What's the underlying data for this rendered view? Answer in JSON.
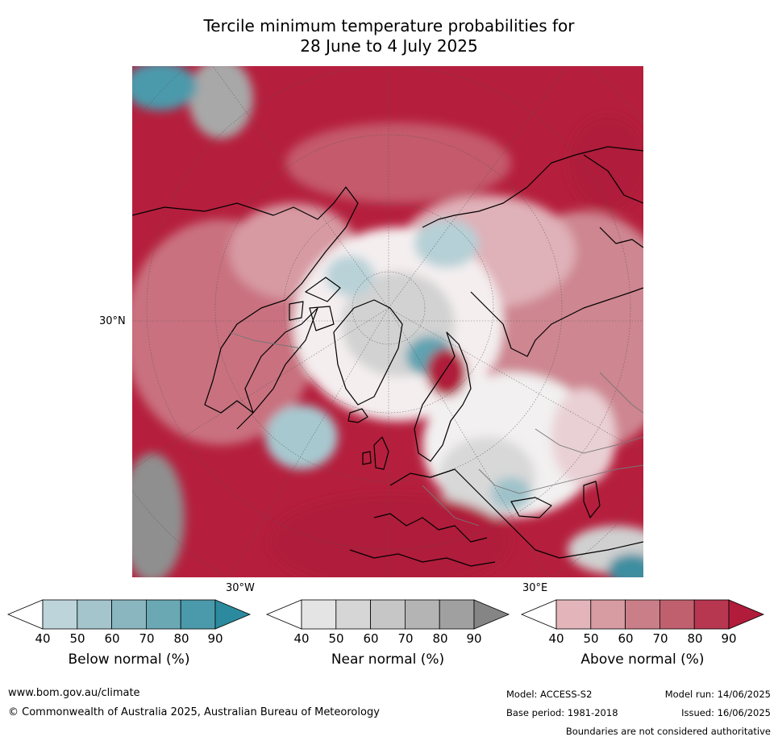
{
  "title": {
    "line1": "Tercile minimum temperature probabilities for",
    "line2": "28 June to 4 July 2025"
  },
  "map": {
    "lat_label": "30°N",
    "lon_label_left": "30°W",
    "lon_label_right": "30°E"
  },
  "colorbars": [
    {
      "title": "Below normal (%)",
      "ticks": [
        "40",
        "50",
        "60",
        "70",
        "80",
        "90"
      ],
      "colors": [
        "#ffffff",
        "#bcd4da",
        "#a4c5cc",
        "#8ab6c0",
        "#6aa8b4",
        "#4b9aab",
        "#2c8a9e"
      ]
    },
    {
      "title": "Near normal (%)",
      "ticks": [
        "40",
        "50",
        "60",
        "70",
        "80",
        "90"
      ],
      "colors": [
        "#ffffff",
        "#e4e4e4",
        "#d6d6d6",
        "#c6c6c6",
        "#b4b4b4",
        "#a0a0a0",
        "#858585"
      ]
    },
    {
      "title": "Above normal (%)",
      "ticks": [
        "40",
        "50",
        "60",
        "70",
        "80",
        "90"
      ],
      "colors": [
        "#ffffff",
        "#e3b5bb",
        "#d79ba2",
        "#ca7e88",
        "#c0606e",
        "#b73650",
        "#b01c3a"
      ]
    }
  ],
  "footer": {
    "url": "www.bom.gov.au/climate",
    "copyright": "© Commonwealth of Australia 2025, Australian Bureau of Meteorology",
    "model": "Model: ACCESS-S2",
    "base_period": "Base period: 1981-2018",
    "model_run": "Model run: 14/06/2025",
    "issued": "Issued: 16/06/2025",
    "disclaimer": "Boundaries are not considered authoritative"
  }
}
